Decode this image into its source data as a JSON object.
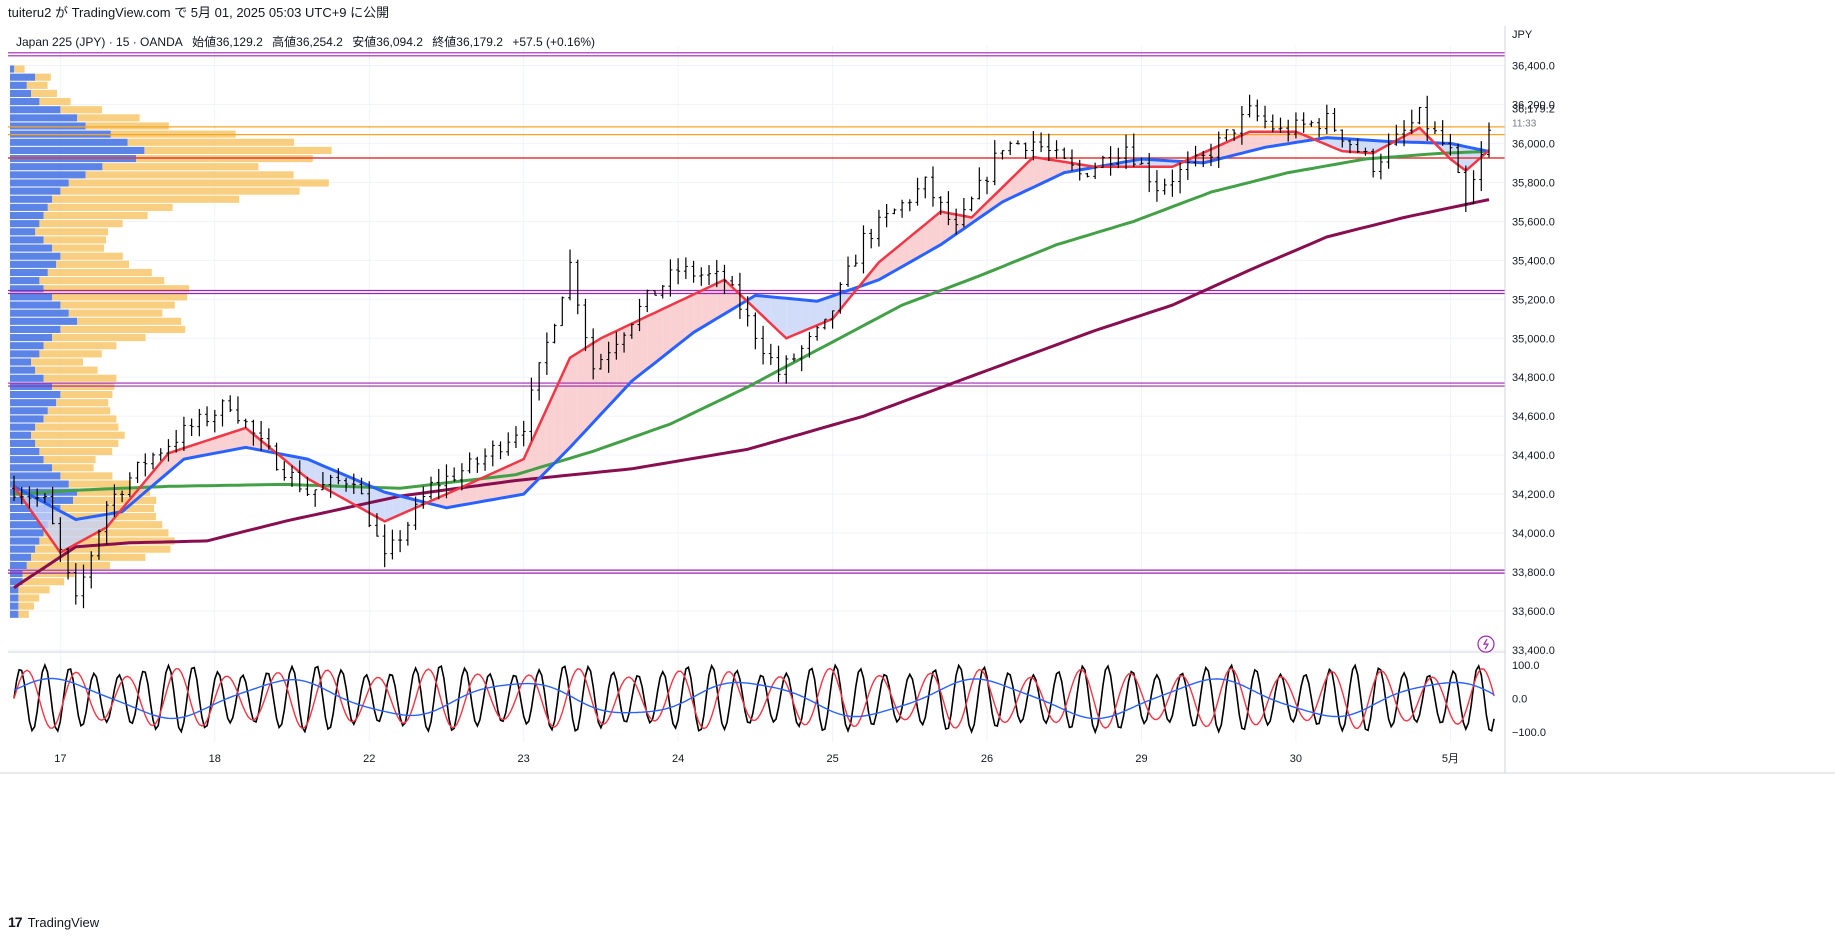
{
  "header": {
    "publish_text": "tuiteru2 が TradingView.com で 5月 01, 2025 05:03 UTC+9 に公開"
  },
  "legend": {
    "symbol": "Japan 225 (JPY) · 15 · OANDA",
    "open": "始値36,129.2",
    "high": "高値36,254.2",
    "low": "安値36,094.2",
    "close": "終値36,179.2",
    "change": "+57.5 (+0.16%)"
  },
  "price_axis": {
    "currency": "JPY",
    "current_price": "36,179.2",
    "countdown": "11:33"
  },
  "footer": {
    "brand": "TradingView",
    "logo_mark": "17"
  },
  "colors": {
    "candles": "#000000",
    "ma_fast": "#f23645",
    "ma_mid": "#2962ff",
    "ma_slow": "#43a047",
    "ma_long": "#880e4f",
    "level_orange": "#f5a623",
    "level_red": "#e53935",
    "level_purple": "#9c27b0",
    "vp_blue": "#3f6fe3",
    "vp_orange": "#f7c66a",
    "cloud_red": "#f8c5c8",
    "cloud_blue": "#c6d3f7"
  },
  "chart_data": [
    {
      "type": "line",
      "title": "Japan 225 (JPY) · 15 · OANDA",
      "ylim": [
        33400,
        36500
      ],
      "y_ticks": [
        "36,400.0",
        "36,200.0",
        "36,000.0",
        "35,800.0",
        "35,600.0",
        "35,400.0",
        "35,200.0",
        "35,000.0",
        "34,800.0",
        "34,600.0",
        "34,400.0",
        "34,200.0",
        "34,000.0",
        "33,800.0",
        "33,600.0",
        "33,400.0"
      ],
      "y_tick_values": [
        36400,
        36200,
        36000,
        35800,
        35600,
        35400,
        35200,
        35000,
        34800,
        34600,
        34400,
        34200,
        34000,
        33800,
        33600,
        33400
      ],
      "x_ticks": [
        "17",
        "18",
        "22",
        "23",
        "24",
        "25",
        "26",
        "29",
        "30",
        "5月"
      ],
      "x_tick_index": [
        6,
        26,
        46,
        66,
        86,
        106,
        126,
        146,
        166,
        186
      ],
      "n_bars": 192,
      "price_keypoints": [
        [
          0,
          34230
        ],
        [
          4,
          34160
        ],
        [
          8,
          33640
        ],
        [
          12,
          34150
        ],
        [
          17,
          34370
        ],
        [
          22,
          34520
        ],
        [
          28,
          34670
        ],
        [
          32,
          34450
        ],
        [
          38,
          34210
        ],
        [
          44,
          34290
        ],
        [
          48,
          33860
        ],
        [
          54,
          34240
        ],
        [
          60,
          34360
        ],
        [
          66,
          34560
        ],
        [
          72,
          35380
        ],
        [
          75,
          34850
        ],
        [
          82,
          35200
        ],
        [
          86,
          35350
        ],
        [
          92,
          35300
        ],
        [
          99,
          34820
        ],
        [
          105,
          35060
        ],
        [
          110,
          35510
        ],
        [
          118,
          35790
        ],
        [
          122,
          35550
        ],
        [
          128,
          35990
        ],
        [
          132,
          36010
        ],
        [
          138,
          35840
        ],
        [
          144,
          35990
        ],
        [
          148,
          35780
        ],
        [
          154,
          35920
        ],
        [
          160,
          36160
        ],
        [
          164,
          36060
        ],
        [
          170,
          36120
        ],
        [
          176,
          35890
        ],
        [
          182,
          36140
        ],
        [
          186,
          35950
        ],
        [
          188,
          35670
        ],
        [
          192,
          36179
        ]
      ],
      "ma_fast_keypoints": [
        [
          0,
          34240
        ],
        [
          6,
          33900
        ],
        [
          12,
          34030
        ],
        [
          20,
          34410
        ],
        [
          30,
          34540
        ],
        [
          38,
          34280
        ],
        [
          48,
          34060
        ],
        [
          56,
          34200
        ],
        [
          66,
          34380
        ],
        [
          72,
          34900
        ],
        [
          76,
          35000
        ],
        [
          84,
          35150
        ],
        [
          92,
          35300
        ],
        [
          100,
          35000
        ],
        [
          106,
          35100
        ],
        [
          112,
          35390
        ],
        [
          120,
          35650
        ],
        [
          124,
          35620
        ],
        [
          132,
          35930
        ],
        [
          140,
          35880
        ],
        [
          150,
          35880
        ],
        [
          160,
          36060
        ],
        [
          166,
          36060
        ],
        [
          172,
          35960
        ],
        [
          176,
          35950
        ],
        [
          182,
          36080
        ],
        [
          186,
          35920
        ],
        [
          188,
          35860
        ],
        [
          192,
          36000
        ]
      ],
      "ma_mid_keypoints": [
        [
          0,
          34240
        ],
        [
          8,
          34070
        ],
        [
          14,
          34110
        ],
        [
          22,
          34380
        ],
        [
          30,
          34440
        ],
        [
          38,
          34380
        ],
        [
          48,
          34210
        ],
        [
          56,
          34130
        ],
        [
          66,
          34200
        ],
        [
          72,
          34440
        ],
        [
          80,
          34780
        ],
        [
          88,
          35030
        ],
        [
          96,
          35220
        ],
        [
          104,
          35190
        ],
        [
          112,
          35300
        ],
        [
          120,
          35480
        ],
        [
          128,
          35700
        ],
        [
          136,
          35850
        ],
        [
          146,
          35920
        ],
        [
          154,
          35900
        ],
        [
          162,
          35980
        ],
        [
          170,
          36030
        ],
        [
          178,
          36010
        ],
        [
          186,
          36000
        ],
        [
          192,
          35950
        ]
      ],
      "ma_slow_keypoints": [
        [
          0,
          34200
        ],
        [
          8,
          34220
        ],
        [
          20,
          34240
        ],
        [
          35,
          34250
        ],
        [
          50,
          34230
        ],
        [
          65,
          34300
        ],
        [
          75,
          34420
        ],
        [
          85,
          34560
        ],
        [
          95,
          34750
        ],
        [
          105,
          34960
        ],
        [
          115,
          35170
        ],
        [
          125,
          35320
        ],
        [
          135,
          35480
        ],
        [
          145,
          35600
        ],
        [
          155,
          35750
        ],
        [
          165,
          35850
        ],
        [
          175,
          35920
        ],
        [
          185,
          35950
        ],
        [
          192,
          35960
        ]
      ],
      "ma_long_keypoints": [
        [
          0,
          33720
        ],
        [
          8,
          33930
        ],
        [
          15,
          33950
        ],
        [
          25,
          33960
        ],
        [
          35,
          34060
        ],
        [
          50,
          34190
        ],
        [
          65,
          34270
        ],
        [
          80,
          34330
        ],
        [
          95,
          34430
        ],
        [
          110,
          34600
        ],
        [
          125,
          34820
        ],
        [
          140,
          35040
        ],
        [
          150,
          35170
        ],
        [
          160,
          35350
        ],
        [
          170,
          35520
        ],
        [
          180,
          35620
        ],
        [
          192,
          35720
        ]
      ],
      "levels": [
        {
          "price": 36465,
          "color": "purple"
        },
        {
          "price": 36085,
          "color": "orange"
        },
        {
          "price": 36045,
          "color": "orange"
        },
        {
          "price": 35925,
          "color": "red"
        },
        {
          "price": 35245,
          "color": "purple"
        },
        {
          "price": 34770,
          "color": "purple"
        },
        {
          "price": 33810,
          "color": "purple"
        }
      ]
    },
    {
      "type": "line",
      "title": "",
      "ylim": [
        -130,
        130
      ],
      "y_ticks": [
        "100.0",
        "0.0",
        "−100.0"
      ],
      "y_tick_values": [
        100,
        0,
        -100
      ],
      "series": [
        {
          "key": "osc_black",
          "amplitude": 100,
          "cycle_bars": 3.2
        },
        {
          "key": "osc_red",
          "amplitude": 90,
          "cycle_bars": 6.5
        },
        {
          "key": "osc_blue",
          "amplitude": 60,
          "cycle_bars": 30
        }
      ]
    }
  ],
  "volume_profile": {
    "blue": [
      1,
      6,
      4,
      5,
      7,
      12,
      16,
      18,
      24,
      28,
      32,
      30,
      22,
      18,
      14,
      12,
      10,
      9,
      8,
      7,
      6,
      8,
      10,
      12,
      11,
      9,
      7,
      8,
      10,
      12,
      14,
      16,
      12,
      10,
      8,
      7,
      5,
      6,
      8,
      10,
      12,
      11,
      9,
      8,
      6,
      5,
      6,
      7,
      8,
      10,
      12,
      14,
      16,
      15,
      12,
      10,
      9,
      8,
      7,
      6,
      5,
      4,
      3,
      3,
      2,
      2,
      2,
      2
    ],
    "orange": [
      2,
      3,
      4,
      5,
      6,
      8,
      12,
      16,
      24,
      32,
      36,
      34,
      30,
      40,
      50,
      46,
      36,
      24,
      20,
      16,
      14,
      12,
      10,
      12,
      14,
      20,
      24,
      28,
      26,
      22,
      18,
      20,
      24,
      18,
      14,
      12,
      10,
      12,
      14,
      12,
      10,
      10,
      12,
      14,
      16,
      18,
      16,
      14,
      10,
      8,
      10,
      12,
      14,
      16,
      18,
      20,
      22,
      24,
      26,
      26,
      22,
      16,
      10,
      8,
      6,
      4,
      3,
      2
    ]
  }
}
